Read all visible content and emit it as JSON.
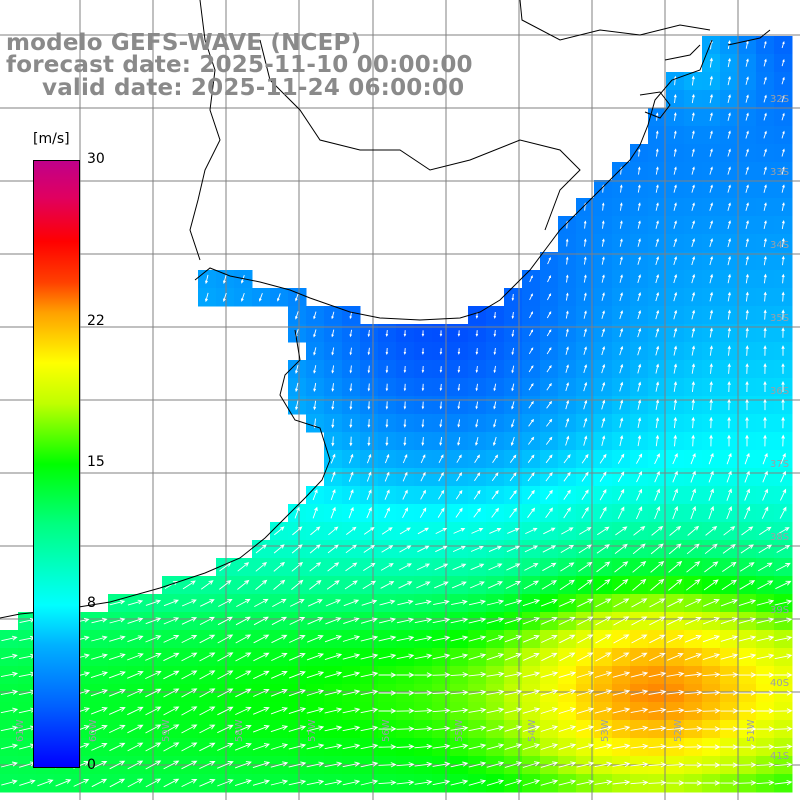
{
  "title": {
    "line1": "modelo GEFS-WAVE (NCEP)",
    "line2": "forecast date: 2025-11-10 00:00:00",
    "line3": "valid date: 2025-11-24 06:00:00"
  },
  "colorbar": {
    "unit": "[m/s]",
    "ticks": [
      {
        "label": "30",
        "value": 30
      },
      {
        "label": "22",
        "value": 22
      },
      {
        "label": "15",
        "value": 15
      },
      {
        "label": "8",
        "value": 8
      },
      {
        "label": "0",
        "value": 0
      }
    ],
    "range": [
      0,
      30
    ]
  },
  "latitude_labels": [
    "32S",
    "33S",
    "34S",
    "35S",
    "36S",
    "37S",
    "38S",
    "39S",
    "40S",
    "41S"
  ],
  "longitude_labels": [
    "61W",
    "60W",
    "59W",
    "58W",
    "57W",
    "56W",
    "55W",
    "54W",
    "53W",
    "52W",
    "51W"
  ],
  "colors": {
    "land": "#ffffff",
    "grid": "#808080",
    "coast": "#000000",
    "title": "#8a8a8a",
    "arrows": "#ffffff"
  }
}
